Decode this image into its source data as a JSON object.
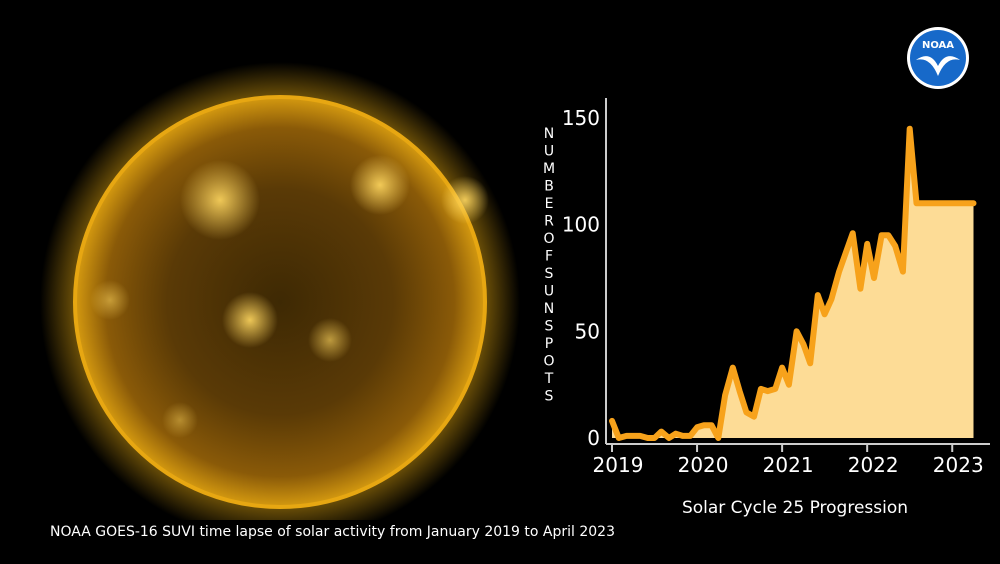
{
  "caption": "NOAA GOES-16 SUVI time lapse of solar activity from January 2019 to April 2023",
  "logo": {
    "text": "NOAA",
    "icon": "noaa-seagull-icon",
    "color_outer": "#1769c9",
    "color_inner": "#ffffff"
  },
  "colors": {
    "line": "#f7a21b",
    "fill": "#fddc96",
    "sun_core": "#5a3a06",
    "sun_glow": "#f2b312",
    "axis": "#cccccc",
    "text": "#ffffff"
  },
  "chart_data": {
    "type": "area",
    "title": "",
    "subtitle": "Solar Cycle 25 Progression",
    "ylabel": "NUMBER OF SUNSPOTS",
    "xlabel": "",
    "x_ticks": [
      "2019",
      "2020",
      "2021",
      "2022",
      "2023"
    ],
    "x_tick_values": [
      2019,
      2020,
      2021,
      2022,
      2023
    ],
    "y_ticks": [
      "0",
      "50",
      "100",
      "150"
    ],
    "y_tick_values": [
      0,
      50,
      100,
      150
    ],
    "xlim": [
      2019,
      2023.5
    ],
    "ylim": [
      0,
      150
    ],
    "grid": false,
    "series": [
      {
        "x": [
          2019.0,
          2019.08,
          2019.17,
          2019.25,
          2019.33,
          2019.42,
          2019.5,
          2019.58,
          2019.67,
          2019.75,
          2019.83,
          2019.92,
          2020.0,
          2020.08,
          2020.17,
          2020.25,
          2020.33,
          2020.42,
          2020.5,
          2020.58,
          2020.67,
          2020.75,
          2020.83,
          2020.92,
          2021.0,
          2021.08,
          2021.17,
          2021.25,
          2021.33,
          2021.42,
          2021.5,
          2021.58,
          2021.67,
          2021.75,
          2021.83,
          2021.92,
          2022.0,
          2022.08,
          2022.17,
          2022.25,
          2022.33,
          2022.42,
          2022.5,
          2022.58,
          2022.67,
          2022.75,
          2022.83,
          2022.92,
          2023.0,
          2023.08,
          2023.17,
          2023.25
        ],
        "values": [
          8,
          0,
          1,
          1,
          1,
          0,
          0,
          3,
          0,
          2,
          1,
          1,
          5,
          6,
          6,
          0,
          20,
          33,
          22,
          12,
          10,
          23,
          22,
          23,
          33,
          25,
          50,
          44,
          35,
          67,
          58,
          65,
          78,
          87,
          96,
          70,
          91,
          75,
          95,
          95,
          90,
          78,
          145,
          110,
          110,
          110,
          110,
          110,
          110,
          110,
          110,
          110
        ]
      }
    ]
  }
}
